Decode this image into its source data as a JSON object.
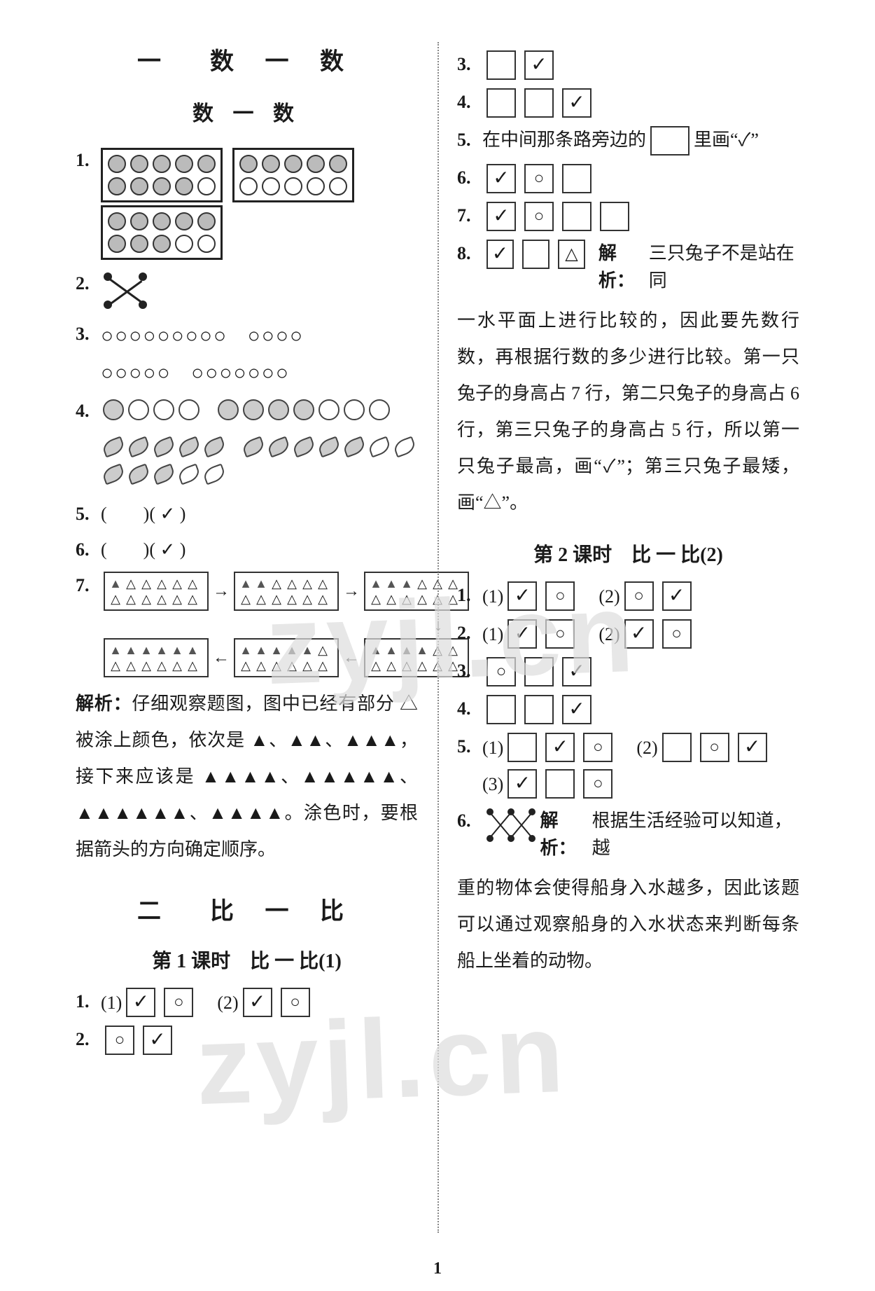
{
  "page_number": "1",
  "watermarks": [
    "zyjl.cn",
    "zyjl.cn"
  ],
  "left": {
    "section_title": "一　数 一 数",
    "sub_title": "数 一 数",
    "q1": {
      "num": "1.",
      "frames": [
        {
          "rows": 2,
          "cols": 5,
          "filled": 9
        },
        {
          "rows": 2,
          "cols": 5,
          "filled": 5
        },
        {
          "rows": 2,
          "cols": 5,
          "filled": 8
        }
      ]
    },
    "q2": {
      "num": "2."
    },
    "q3": {
      "num": "3.",
      "groups_line1": [
        "○○○○○○○○○",
        "○○○○"
      ],
      "groups_line2": [
        "○○○○○",
        "○○○○○○○"
      ]
    },
    "q4": {
      "num": "4.",
      "faces_row1": {
        "filled": 1,
        "total": 4
      },
      "faces_row2": {
        "filled": 4,
        "total": 7
      },
      "leaves_row1": {
        "filled": 5,
        "total": 5
      },
      "leaves_row2": {
        "filled": 3,
        "total": 5
      },
      "leaves_row3": {
        "filled": 5,
        "total": 7
      }
    },
    "q5": {
      "num": "5.",
      "text_left": "(　　)",
      "text_right": "( ✓ )"
    },
    "q6": {
      "num": "6.",
      "text_left": "(　　)",
      "text_right": "( ✓ )"
    },
    "q7": {
      "num": "7.",
      "boxes": [
        {
          "filled": 1
        },
        {
          "filled": 2
        },
        {
          "filled": 3
        },
        {
          "filled": 4
        },
        {
          "filled": 5
        },
        {
          "filled": 6
        }
      ],
      "explain_label": "解析：",
      "explain": "仔细观察题图，图中已经有部分 △ 被涂上颜色，依次是 ▲、▲▲、▲▲▲，接下来应该是 ▲▲▲▲、▲▲▲▲▲、▲▲▲▲▲▲、▲▲▲▲。涂色时，要根据箭头的方向确定顺序。"
    },
    "section2_title": "二　比 一 比",
    "lesson1_title": "第 1 课时　比 一 比(1)",
    "s2q1": {
      "num": "1.",
      "p1": "(1)",
      "p2": "(2)"
    },
    "s2q2": {
      "num": "2."
    }
  },
  "right": {
    "q3": {
      "num": "3."
    },
    "q4": {
      "num": "4."
    },
    "q5": {
      "num": "5.",
      "text": "在中间那条路旁边的",
      "tail": "里画“✓”"
    },
    "q6": {
      "num": "6."
    },
    "q7": {
      "num": "7."
    },
    "q8": {
      "num": "8.",
      "explain_label": "解析：",
      "explain": "三只兔子不是站在同一水平面上进行比较的，因此要先数行数，再根据行数的多少进行比较。第一只兔子的身高占 7 行，第二只兔子的身高占 6 行，第三只兔子的身高占 5 行，所以第一只兔子最高，画“✓”；第三只兔子最矮，画“△”。"
    },
    "lesson2_title": "第 2 课时　比 一 比(2)",
    "l2q1": {
      "num": "1.",
      "p1": "(1)",
      "p2": "(2)"
    },
    "l2q2": {
      "num": "2.",
      "p1": "(1)",
      "p2": "(2)"
    },
    "l2q3": {
      "num": "3."
    },
    "l2q4": {
      "num": "4."
    },
    "l2q5": {
      "num": "5.",
      "p1": "(1)",
      "p2": "(2)",
      "p3": "(3)"
    },
    "l2q6": {
      "num": "6.",
      "explain_label": "解析：",
      "explain": "根据生活经验可以知道，越重的物体会使得船身入水越多，因此该题可以通过观察船身的入水状态来判断每条船上坐着的动物。"
    }
  }
}
